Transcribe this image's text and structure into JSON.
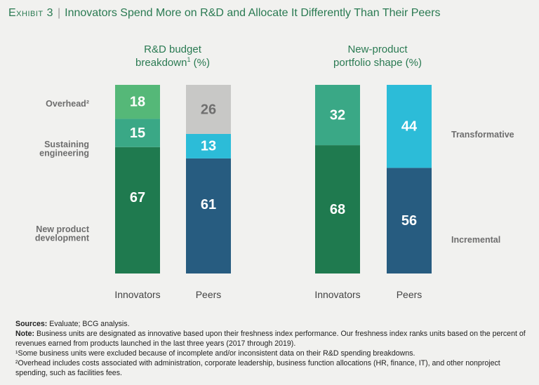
{
  "header": {
    "exhibit": "Exhibit 3",
    "title": "Innovators Spend More on R&D and Allocate It Differently Than Their Peers"
  },
  "chart_data": [
    {
      "type": "bar",
      "stacked": true,
      "title_line1": "R&D budget",
      "title_line2": "breakdown",
      "title_sup": "1",
      "title_suffix": "(%)",
      "categories": [
        "Innovators",
        "Peers"
      ],
      "series": [
        {
          "name": "New product development",
          "label_lines": [
            "New product",
            "development"
          ],
          "values": [
            67,
            61
          ],
          "colors": [
            "#1f7a4f",
            "#275c80"
          ],
          "text_color": "#ffffff"
        },
        {
          "name": "Sustaining engineering",
          "label_lines": [
            "Sustaining",
            "engineering"
          ],
          "values": [
            15,
            13
          ],
          "colors": [
            "#3aa886",
            "#2cbcd8"
          ],
          "text_color": "#ffffff"
        },
        {
          "name": "Overhead",
          "label_lines": [
            "Overhead²"
          ],
          "values": [
            18,
            26
          ],
          "colors": [
            "#55b878",
            "#c8c8c6"
          ],
          "text_color_list": [
            "#ffffff",
            "#6f6f6f"
          ]
        }
      ],
      "ylim": [
        0,
        100
      ]
    },
    {
      "type": "bar",
      "stacked": true,
      "title_line1": "New-product",
      "title_line2": "portfolio shape",
      "title_sup": "",
      "title_suffix": "(%)",
      "categories": [
        "Innovators",
        "Peers"
      ],
      "series": [
        {
          "name": "Incremental",
          "label_lines": [
            "Incremental"
          ],
          "values": [
            68,
            56
          ],
          "colors": [
            "#1f7a4f",
            "#275c80"
          ],
          "text_color": "#ffffff"
        },
        {
          "name": "Transformative",
          "label_lines": [
            "Transformative"
          ],
          "values": [
            32,
            44
          ],
          "colors": [
            "#3aa886",
            "#2cbcd8"
          ],
          "text_color": "#ffffff"
        }
      ],
      "ylim": [
        0,
        100
      ]
    }
  ],
  "notes": {
    "sources_label": "Sources:",
    "sources_text": "Evaluate; BCG analysis.",
    "note_label": "Note:",
    "note_text": "Business units are designated as innovative based upon their freshness index performance. Our freshness index ranks units based on the percent of revenues earned from products launched in the last three years (2017 through 2019).",
    "footnote1": "¹Some business units were excluded because of incomplete and/or inconsistent data on their R&D spending breakdowns.",
    "footnote2": "²Overhead includes costs associated with administration, corporate leadership, business function allocations (HR, finance, IT), and other nonproject spending, such as facilities fees."
  }
}
